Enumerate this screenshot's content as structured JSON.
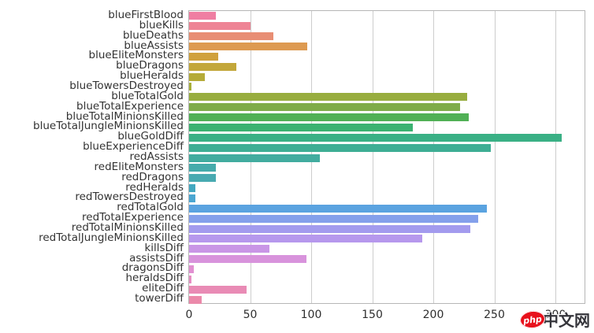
{
  "chart_data": {
    "type": "bar",
    "orientation": "horizontal",
    "title": "",
    "xlabel": "",
    "ylabel": "",
    "xlim": [
      0,
      325
    ],
    "xticks": [
      0,
      50,
      100,
      150,
      200,
      250,
      300
    ],
    "grid": "vertical",
    "categories": [
      "blueFirstBlood",
      "blueKills",
      "blueDeaths",
      "blueAssists",
      "blueEliteMonsters",
      "blueDragons",
      "blueHeralds",
      "blueTowersDestroyed",
      "blueTotalGold",
      "blueTotalExperience",
      "blueTotalMinionsKilled",
      "blueTotalJungleMinionsKilled",
      "blueGoldDiff",
      "blueExperienceDiff",
      "redAssists",
      "redEliteMonsters",
      "redDragons",
      "redHeralds",
      "redTowersDestroyed",
      "redTotalGold",
      "redTotalExperience",
      "redTotalMinionsKilled",
      "redTotalJungleMinionsKilled",
      "killsDiff",
      "assistsDiff",
      "dragonsDiff",
      "heraldsDiff",
      "eliteDiff",
      "towerDiff"
    ],
    "values": [
      22,
      50,
      69,
      97,
      24,
      39,
      13,
      2,
      228,
      222,
      229,
      183,
      305,
      247,
      107,
      22,
      22,
      5,
      5,
      244,
      237,
      230,
      191,
      66,
      96,
      4,
      2,
      47,
      10
    ],
    "colors": [
      "#ef7ea2",
      "#ee8495",
      "#e88e74",
      "#dd9a51",
      "#d0a13c",
      "#c3a73a",
      "#b5ab39",
      "#a7ae3a",
      "#98ad3f",
      "#7fac49",
      "#50b055",
      "#3bb271",
      "#3ab085",
      "#3eae94",
      "#42ac9f",
      "#46abab",
      "#48aab1",
      "#43a8c0",
      "#4ba6d1",
      "#5aa3e0",
      "#84a0eb",
      "#a39bee",
      "#b698ed",
      "#c996e6",
      "#d893dc",
      "#e190d1",
      "#e68dc2",
      "#e98bb5",
      "#eb89aa"
    ],
    "gridline_color": "#cdcdcd",
    "spine_color": "#b6b6b6"
  },
  "watermark": {
    "logo_text": "php",
    "site_text": "中文网",
    "logo_color": "#e8111c"
  }
}
